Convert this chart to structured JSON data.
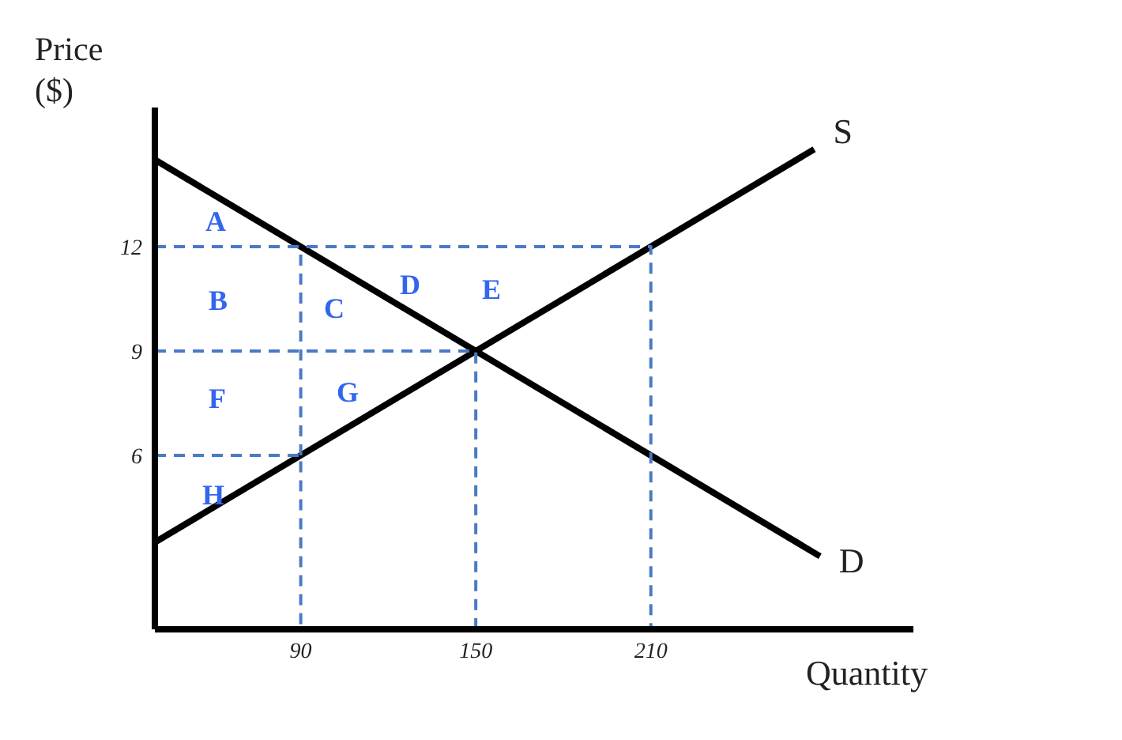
{
  "chart_data": {
    "type": "line",
    "xlabel": "Quantity",
    "ylabel": "Price ($)",
    "xlim": [
      40,
      300
    ],
    "ylim": [
      1,
      16
    ],
    "xticks": [
      90,
      150,
      210
    ],
    "yticks": [
      6,
      9,
      12
    ],
    "series": [
      {
        "name": "S",
        "color": "#000000",
        "x": [
          40,
          266
        ],
        "values": [
          3.5,
          14.8
        ]
      },
      {
        "name": "D",
        "color": "#000000",
        "x": [
          40,
          268
        ],
        "values": [
          14.5,
          3.1
        ]
      },
      {
        "color": "#4a7ac4",
        "line_style": "dashed",
        "x": [
          40,
          210,
          210
        ],
        "values": [
          12,
          12,
          1
        ]
      },
      {
        "color": "#4a7ac4",
        "line_style": "dashed",
        "x": [
          40,
          150,
          150
        ],
        "values": [
          9,
          9,
          1
        ]
      },
      {
        "color": "#4a7ac4",
        "line_style": "dashed",
        "x": [
          40,
          90,
          90
        ],
        "values": [
          6,
          6,
          1
        ]
      },
      {
        "color": "#4a7ac4",
        "line_style": "dashed",
        "x": [
          90,
          90
        ],
        "values": [
          6,
          12
        ]
      }
    ],
    "annotations": [
      "A",
      "B",
      "C",
      "D",
      "E",
      "F",
      "G",
      "H"
    ],
    "marker": "none"
  }
}
